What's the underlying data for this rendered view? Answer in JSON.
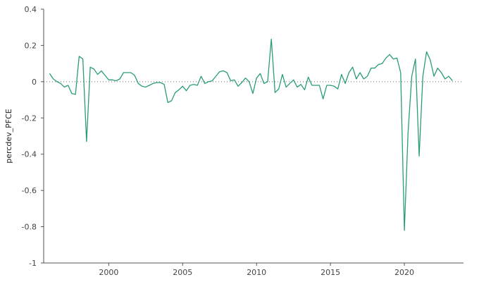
{
  "chart_data": {
    "type": "line",
    "title": "",
    "xlabel": "",
    "ylabel": "percdev_PFCE",
    "xlim": [
      1995.6,
      2024.0
    ],
    "ylim": [
      -1,
      0.4
    ],
    "yticks": [
      -1,
      -0.8,
      -0.6,
      -0.4,
      -0.2,
      0,
      0.2,
      0.4
    ],
    "ytick_labels": [
      "-1",
      "-0.8",
      "-0.6",
      "-0.4",
      "-0.2",
      "0",
      "0.2",
      "0.4"
    ],
    "xticks": [
      2000,
      2005,
      2010,
      2015,
      2020
    ],
    "xtick_labels": [
      "2000",
      "2005",
      "2010",
      "2015",
      "2020"
    ],
    "grid": false,
    "zero_line": "dotted",
    "colors": {
      "line": "#2a9d73",
      "axis": "#555555",
      "zero_line": "#666666"
    },
    "series": [
      {
        "x": [
          1996.0,
          1996.25,
          1996.5,
          1996.75,
          1997.0,
          1997.25,
          1997.5,
          1997.75,
          1998.0,
          1998.25,
          1998.5,
          1998.75,
          1999.0,
          1999.25,
          1999.5,
          1999.75,
          2000.0,
          2000.25,
          2000.5,
          2000.75,
          2001.0,
          2001.25,
          2001.5,
          2001.75,
          2002.0,
          2002.25,
          2002.5,
          2002.75,
          2003.0,
          2003.25,
          2003.5,
          2003.75,
          2004.0,
          2004.25,
          2004.5,
          2004.75,
          2005.0,
          2005.25,
          2005.5,
          2005.75,
          2006.0,
          2006.25,
          2006.5,
          2006.75,
          2007.0,
          2007.25,
          2007.5,
          2007.75,
          2008.0,
          2008.25,
          2008.5,
          2008.75,
          2009.0,
          2009.25,
          2009.5,
          2009.75,
          2010.0,
          2010.25,
          2010.5,
          2010.75,
          2011.0,
          2011.25,
          2011.5,
          2011.75,
          2012.0,
          2012.25,
          2012.5,
          2012.75,
          2013.0,
          2013.25,
          2013.5,
          2013.75,
          2014.0,
          2014.25,
          2014.5,
          2014.75,
          2015.0,
          2015.25,
          2015.5,
          2015.75,
          2016.0,
          2016.25,
          2016.5,
          2016.75,
          2017.0,
          2017.25,
          2017.5,
          2017.75,
          2018.0,
          2018.25,
          2018.5,
          2018.75,
          2019.0,
          2019.25,
          2019.5,
          2019.75,
          2020.0,
          2020.25,
          2020.5,
          2020.75,
          2021.0,
          2021.25,
          2021.5,
          2021.75,
          2022.0,
          2022.25,
          2022.5,
          2022.75,
          2023.0,
          2023.25
        ],
        "y": [
          0.045,
          0.015,
          0.0,
          -0.01,
          -0.03,
          -0.02,
          -0.065,
          -0.07,
          0.14,
          0.125,
          -0.33,
          0.08,
          0.07,
          0.04,
          0.06,
          0.035,
          0.01,
          0.01,
          0.005,
          0.015,
          0.05,
          0.05,
          0.05,
          0.035,
          -0.01,
          -0.025,
          -0.03,
          -0.02,
          -0.01,
          -0.005,
          -0.005,
          -0.015,
          -0.115,
          -0.105,
          -0.06,
          -0.045,
          -0.025,
          -0.05,
          -0.02,
          -0.015,
          -0.02,
          0.03,
          -0.01,
          0.0,
          0.005,
          0.03,
          0.055,
          0.06,
          0.05,
          0.005,
          0.01,
          -0.025,
          -0.005,
          0.02,
          0.0,
          -0.065,
          0.02,
          0.045,
          -0.01,
          0.0,
          0.235,
          -0.06,
          -0.04,
          0.04,
          -0.03,
          -0.01,
          0.01,
          -0.03,
          -0.015,
          -0.045,
          0.025,
          -0.02,
          -0.02,
          -0.02,
          -0.095,
          -0.02,
          -0.02,
          -0.025,
          -0.04,
          0.04,
          -0.01,
          0.05,
          0.08,
          0.015,
          0.05,
          0.015,
          0.03,
          0.075,
          0.075,
          0.095,
          0.1,
          0.13,
          0.15,
          0.125,
          0.13,
          0.05,
          -0.82,
          -0.28,
          0.03,
          0.125,
          -0.41,
          0.03,
          0.165,
          0.12,
          0.03,
          0.075,
          0.05,
          0.015,
          0.03,
          0.005
        ]
      }
    ]
  }
}
